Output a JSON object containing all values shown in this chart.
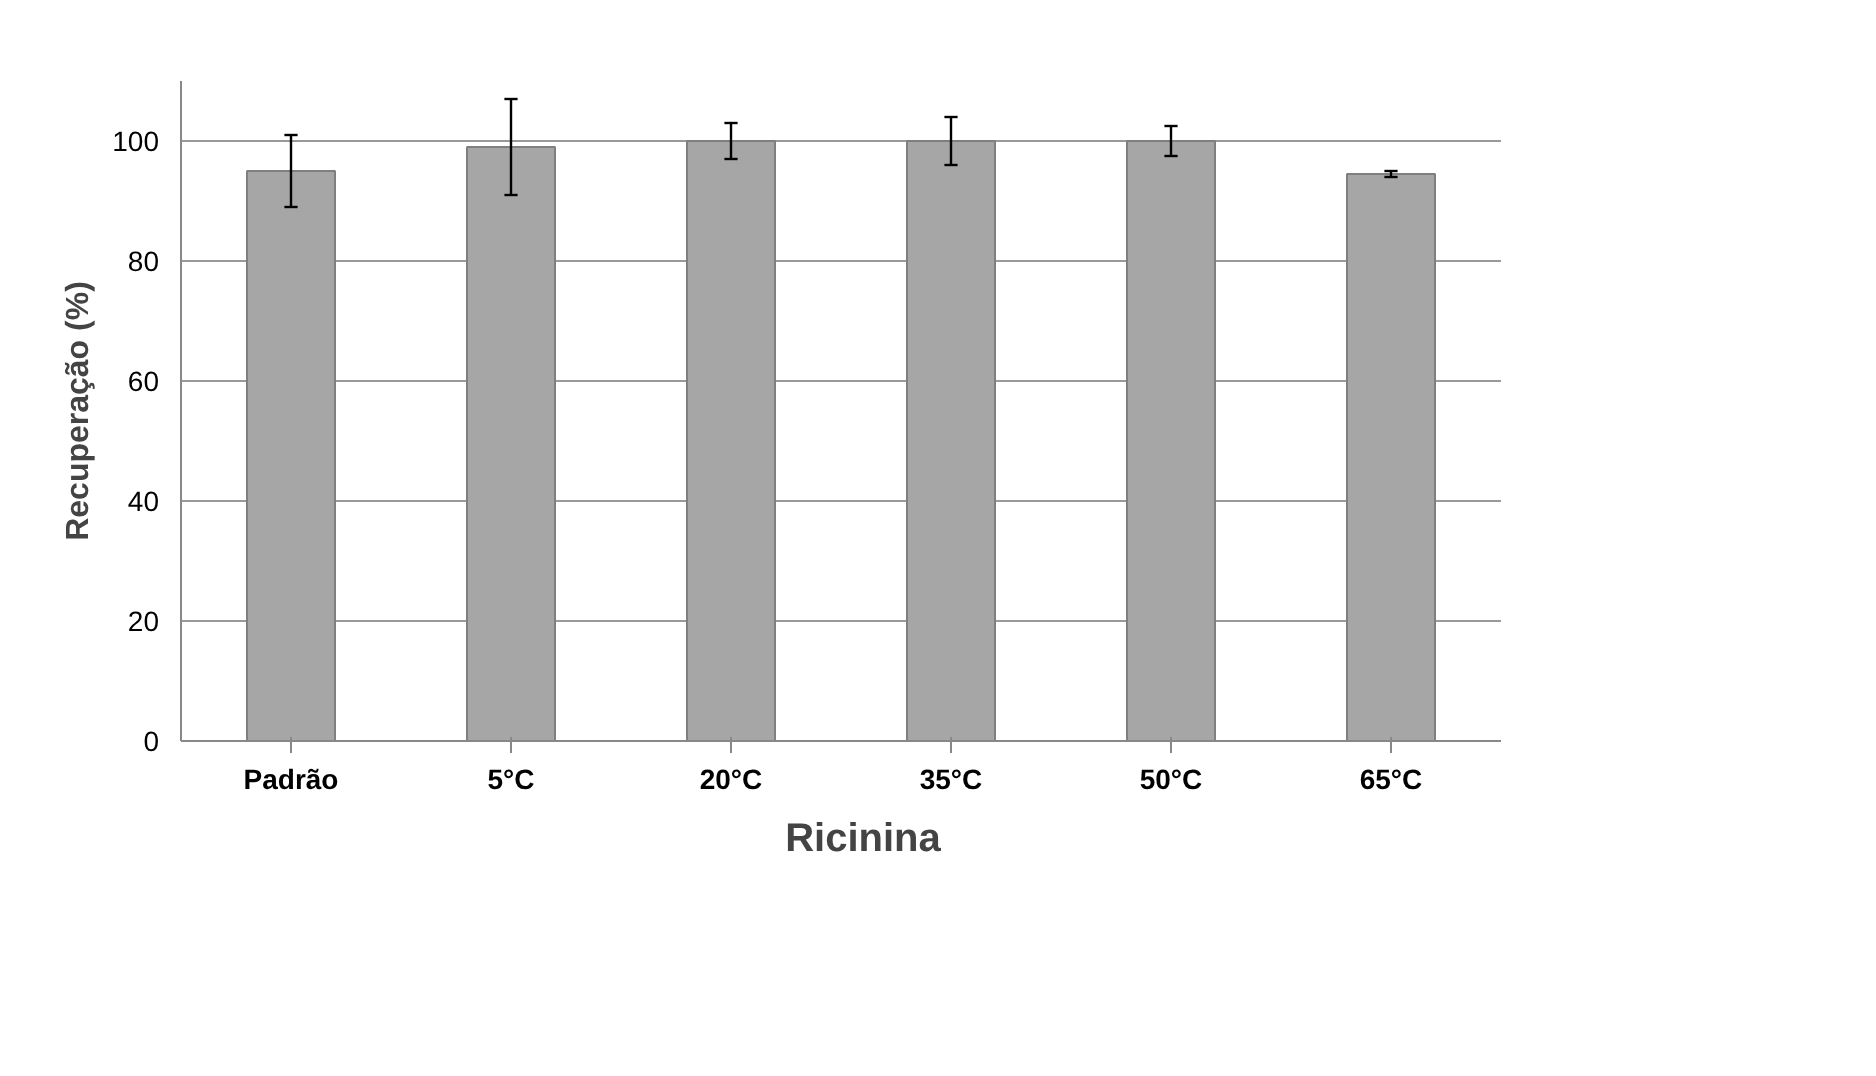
{
  "chart_data": {
    "type": "bar",
    "ylabel": "Recuperação (%)",
    "categories": [
      "Padrão",
      "5°C",
      "20°C",
      "35°C",
      "50°C",
      "65°C"
    ],
    "series": [
      {
        "name": "Ricinina",
        "color": "#a6a6a6",
        "values": [
          95,
          99,
          100,
          100,
          100,
          94.5
        ],
        "errors": [
          6,
          8,
          3,
          4,
          2.5,
          0.5
        ]
      }
    ],
    "ylim": [
      0,
      110
    ],
    "yticks": [
      0,
      20,
      40,
      60,
      80,
      100
    ],
    "grid": "y",
    "legend": "bottom"
  }
}
